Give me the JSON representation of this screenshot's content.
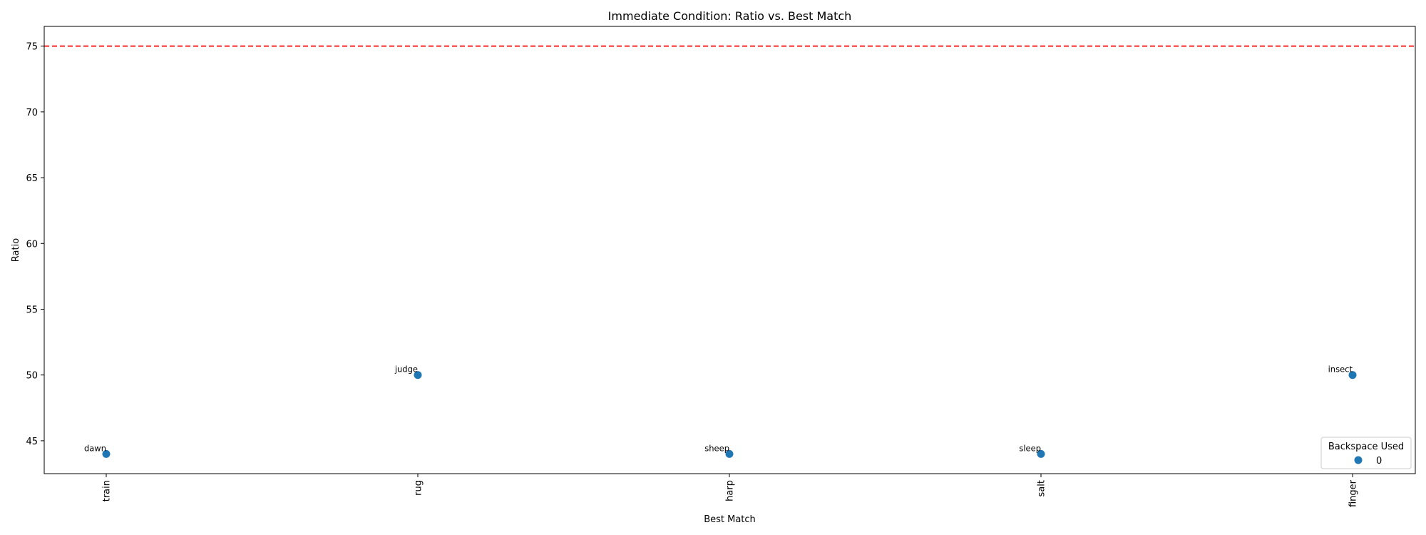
{
  "chart_data": {
    "type": "scatter",
    "title": "Immediate Condition: Ratio vs. Best Match",
    "xlabel": "Best Match",
    "ylabel": "Ratio",
    "categories": [
      "train",
      "rug",
      "harp",
      "salt",
      "finger"
    ],
    "ylim": [
      42.5,
      76.5
    ],
    "yticks": [
      45,
      50,
      55,
      60,
      65,
      70,
      75
    ],
    "grid": false,
    "threshold_line": {
      "y": 75,
      "color": "#ff0000",
      "style": "dashed"
    },
    "series": [
      {
        "name": "0",
        "color": "#1f77b4",
        "points": [
          {
            "x": "train",
            "y": 44,
            "label": "dawn"
          },
          {
            "x": "rug",
            "y": 50,
            "label": "judge"
          },
          {
            "x": "harp",
            "y": 44,
            "label": "sheep"
          },
          {
            "x": "salt",
            "y": 44,
            "label": "sleep"
          },
          {
            "x": "finger",
            "y": 50,
            "label": "insect"
          }
        ]
      }
    ],
    "legend": {
      "title": "Backspace Used",
      "position": "lower-right"
    }
  }
}
